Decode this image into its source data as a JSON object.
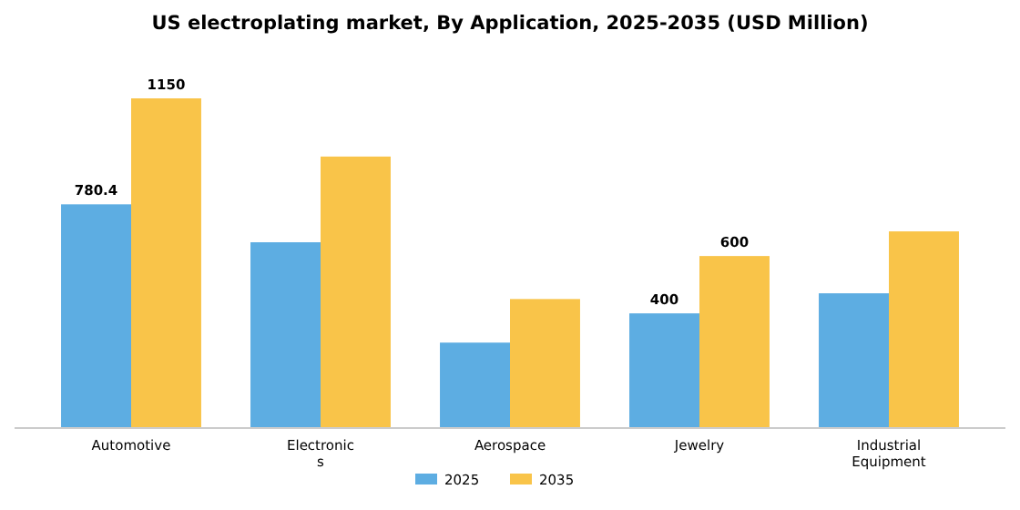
{
  "chart_data": {
    "type": "bar",
    "title": "US electroplating market, By Application, 2025-2035 (USD Million)",
    "categories": [
      "Automotive",
      "Electronics",
      "Aerospace",
      "Jewelry",
      "Industrial Equipment"
    ],
    "series": [
      {
        "name": "2025",
        "color": "#5dade2",
        "values": [
          780.4,
          648,
          298,
          400,
          470
        ],
        "value_labels": [
          "780.4",
          null,
          null,
          "400",
          null
        ]
      },
      {
        "name": "2035",
        "color": "#f9c449",
        "values": [
          1150,
          947,
          450,
          600,
          686
        ],
        "value_labels": [
          "1150",
          null,
          null,
          "600",
          null
        ]
      }
    ],
    "legend": "bottom",
    "grid": false
  }
}
